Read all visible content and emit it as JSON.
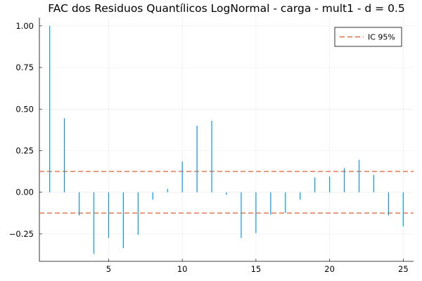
{
  "chart_data": {
    "type": "bar",
    "title": "FAC dos Residuos Quantílicos LogNormal - carga - mult1 - d = 0.5",
    "xlabel": "",
    "ylabel": "",
    "x": [
      1,
      2,
      3,
      4,
      5,
      6,
      7,
      8,
      9,
      10,
      11,
      12,
      13,
      14,
      15,
      16,
      17,
      18,
      19,
      20,
      21,
      22,
      23,
      24,
      25
    ],
    "series": [
      {
        "values": [
          1.0,
          0.445,
          -0.14,
          -0.37,
          -0.275,
          -0.335,
          -0.255,
          -0.045,
          0.02,
          0.185,
          0.4,
          0.43,
          -0.015,
          -0.275,
          -0.245,
          -0.135,
          -0.125,
          -0.045,
          0.09,
          0.095,
          0.145,
          0.195,
          0.105,
          -0.14,
          -0.205
        ],
        "color": "#009af9"
      }
    ],
    "reference_lines": {
      "name": "IC 95%",
      "values": [
        0.125,
        -0.125
      ],
      "color": "#e26f46",
      "style": "dashed"
    },
    "xlim": [
      0.3,
      25.7
    ],
    "ylim": [
      -0.415,
      1.05
    ],
    "xticks": [
      5,
      10,
      15,
      20,
      25
    ],
    "yticks": [
      -0.25,
      0.0,
      0.25,
      0.5,
      0.75,
      1.0
    ],
    "xtick_labels": [
      "5",
      "10",
      "15",
      "20",
      "25"
    ],
    "ytick_labels": [
      "−0.25",
      "0.00",
      "0.25",
      "0.50",
      "0.75",
      "1.00"
    ],
    "grid": true,
    "legend_position": "top-right",
    "legend_entries": [
      "IC 95%"
    ]
  }
}
